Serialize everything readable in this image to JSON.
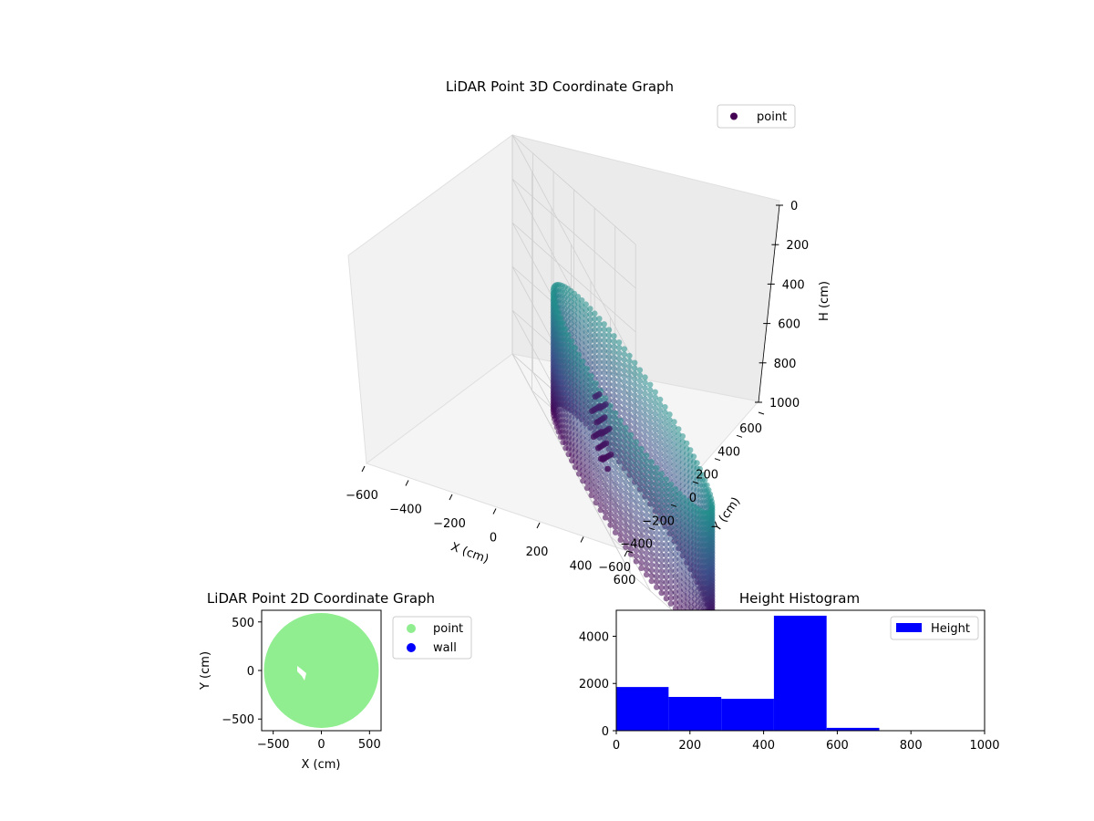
{
  "chart_data": [
    {
      "type": "scatter",
      "projection": "3d",
      "title": "LiDAR Point 3D Coordinate Graph",
      "xlabel": "X (cm)",
      "ylabel": "Y (cm)",
      "zlabel": "H (cm)",
      "xlim": [
        -600,
        600
      ],
      "ylim": [
        -600,
        600
      ],
      "zlim": [
        0,
        1000
      ],
      "z_inverted": true,
      "xticks": [
        "−600",
        "−400",
        "−200",
        "0",
        "200",
        "400",
        "600"
      ],
      "yticks": [
        "−600",
        "−400",
        "−200",
        "0",
        "200",
        "400",
        "600"
      ],
      "zticks": [
        "0",
        "200",
        "400",
        "600",
        "800",
        "1000"
      ],
      "legend": {
        "entries": [
          "point"
        ],
        "placement": "top-right"
      },
      "colormap": [
        "#440154",
        "#3b528b",
        "#21918c"
      ],
      "description_of_shape": "cylindrical wall of points, radius ~600, height 0–1000",
      "grid": true
    },
    {
      "type": "scatter",
      "title": "LiDAR Point 2D Coordinate Graph",
      "xlabel": "X (cm)",
      "ylabel": "Y (cm)",
      "xlim": [
        -620,
        620
      ],
      "ylim": [
        -620,
        620
      ],
      "xticks": [
        "−500",
        "0",
        "500"
      ],
      "yticks": [
        "−500",
        "0",
        "500"
      ],
      "series": [
        {
          "name": "point",
          "color": "#90ee90",
          "shape": "filled disk radius ~600"
        },
        {
          "name": "wall",
          "color": "#0000ff"
        }
      ],
      "legend": {
        "entries": [
          "point",
          "wall"
        ],
        "placement": "outside-right"
      }
    },
    {
      "type": "bar",
      "title": "Height Histogram",
      "xlim": [
        0,
        1000
      ],
      "ylim": [
        0,
        5100
      ],
      "xticks": [
        "0",
        "200",
        "400",
        "600",
        "800",
        "1000"
      ],
      "yticks": [
        "0",
        "2000",
        "4000"
      ],
      "bins": [
        {
          "x0": 0,
          "x1": 142,
          "value": 1850
        },
        {
          "x0": 142,
          "x1": 285,
          "value": 1430
        },
        {
          "x0": 285,
          "x1": 428,
          "value": 1350
        },
        {
          "x0": 428,
          "x1": 571,
          "value": 4870
        },
        {
          "x0": 571,
          "x1": 714,
          "value": 120
        },
        {
          "x0": 714,
          "x1": 857,
          "value": 5
        },
        {
          "x0": 857,
          "x1": 1000,
          "value": 3
        }
      ],
      "color": "#0000ff",
      "legend": {
        "entries": [
          "Height"
        ],
        "placement": "top-right"
      }
    }
  ]
}
